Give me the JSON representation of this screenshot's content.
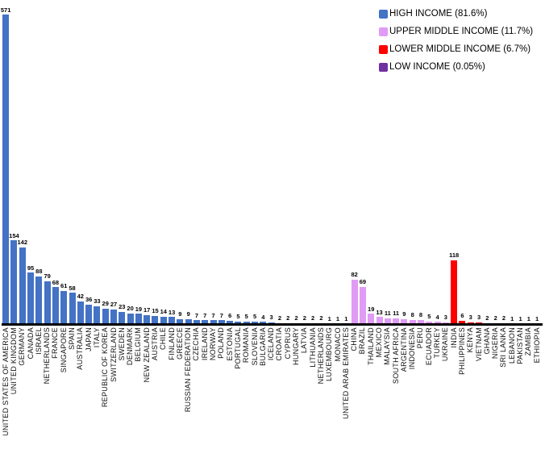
{
  "colors": {
    "high": "#4472C4",
    "upper_middle": "#E09BF5",
    "lower_middle": "#FF0000",
    "low": "#7030A0",
    "axis": "#000000"
  },
  "legend": {
    "position": "top-right",
    "items": [
      {
        "label": "HIGH INCOME (81.6%)",
        "group": "high",
        "color": "#4472C4"
      },
      {
        "label": "UPPER MIDDLE INCOME (11.7%)",
        "group": "upper_middle",
        "color": "#E09BF5"
      },
      {
        "label": "LOWER MIDDLE INCOME (6.7%)",
        "group": "lower_middle",
        "color": "#FF0000"
      },
      {
        "label": "LOW INCOME (0.05%)",
        "group": "low",
        "color": "#7030A0"
      }
    ]
  },
  "chart_data": {
    "type": "bar",
    "title": "",
    "xlabel": "",
    "ylabel": "",
    "ylim": [
      0,
      590
    ],
    "grid": false,
    "y_axis_shown": false,
    "value_labels_shown": true,
    "legend_position": "top-right",
    "categories": [
      "UNITED STATES OF AMERICA",
      "UNITED KINGDOM",
      "GERMANY",
      "CANADA",
      "ISRAEL",
      "NETHERLANDS",
      "FRANCE",
      "SINGAPORE",
      "SPAIN",
      "AUSTRALIA",
      "JAPAN",
      "ITALY",
      "REPUBLIC OF KOREA",
      "SWITZERLAND",
      "SWEDEN",
      "DENMARK",
      "BELGIUM",
      "NEW ZEALAND",
      "AUSTRIA",
      "CHILE",
      "FINLAND",
      "GREECE",
      "RUSSIAN FEDERATION",
      "CZECHIA",
      "IRELAND",
      "NORWAY",
      "POLAND",
      "ESTONIA",
      "PORTUGAL",
      "ROMANIA",
      "SLOVENIA",
      "BULGARIA",
      "ICELAND",
      "CROATIA",
      "CYPRUS",
      "HUNGARY",
      "LATVIA",
      "LITHUANIA",
      "NETHERLANDS",
      "LUXEMBOURG",
      "MONACO",
      "UNITED ARAB EMIRATES",
      "CHINA",
      "BRAZIL",
      "THAILAND",
      "MEXICO",
      "MALAYSIA",
      "SOUTH AFRICA",
      "ARGENTINA",
      "INDONESIA",
      "PERU",
      "ECUADOR",
      "TURKEY",
      "UKRAINE",
      "INDIA",
      "PHILIPPINES",
      "KENYA",
      "VIETNAM",
      "GHANA",
      "NIGERIA",
      "SRI LANKA",
      "LEBANON",
      "PAKISTAN",
      "ZAMBIA",
      "ETHIOPIA"
    ],
    "values": [
      571,
      154,
      142,
      95,
      88,
      79,
      68,
      61,
      58,
      42,
      36,
      33,
      29,
      27,
      23,
      20,
      19,
      17,
      15,
      14,
      13,
      9,
      9,
      7,
      7,
      7,
      7,
      6,
      5,
      5,
      5,
      4,
      3,
      2,
      2,
      2,
      2,
      2,
      2,
      1,
      1,
      1,
      82,
      69,
      19,
      13,
      11,
      11,
      9,
      8,
      8,
      5,
      4,
      3,
      118,
      6,
      3,
      3,
      2,
      2,
      2,
      1,
      1,
      1,
      1
    ],
    "bar_groups": [
      "high",
      "high",
      "high",
      "high",
      "high",
      "high",
      "high",
      "high",
      "high",
      "high",
      "high",
      "high",
      "high",
      "high",
      "high",
      "high",
      "high",
      "high",
      "high",
      "high",
      "high",
      "high",
      "high",
      "high",
      "high",
      "high",
      "high",
      "high",
      "high",
      "high",
      "high",
      "high",
      "high",
      "high",
      "high",
      "high",
      "high",
      "high",
      "high",
      "high",
      "high",
      "high",
      "upper_middle",
      "upper_middle",
      "upper_middle",
      "upper_middle",
      "upper_middle",
      "upper_middle",
      "upper_middle",
      "upper_middle",
      "upper_middle",
      "upper_middle",
      "upper_middle",
      "upper_middle",
      "lower_middle",
      "lower_middle",
      "lower_middle",
      "lower_middle",
      "lower_middle",
      "lower_middle",
      "lower_middle",
      "lower_middle",
      "lower_middle",
      "lower_middle",
      "low"
    ]
  }
}
